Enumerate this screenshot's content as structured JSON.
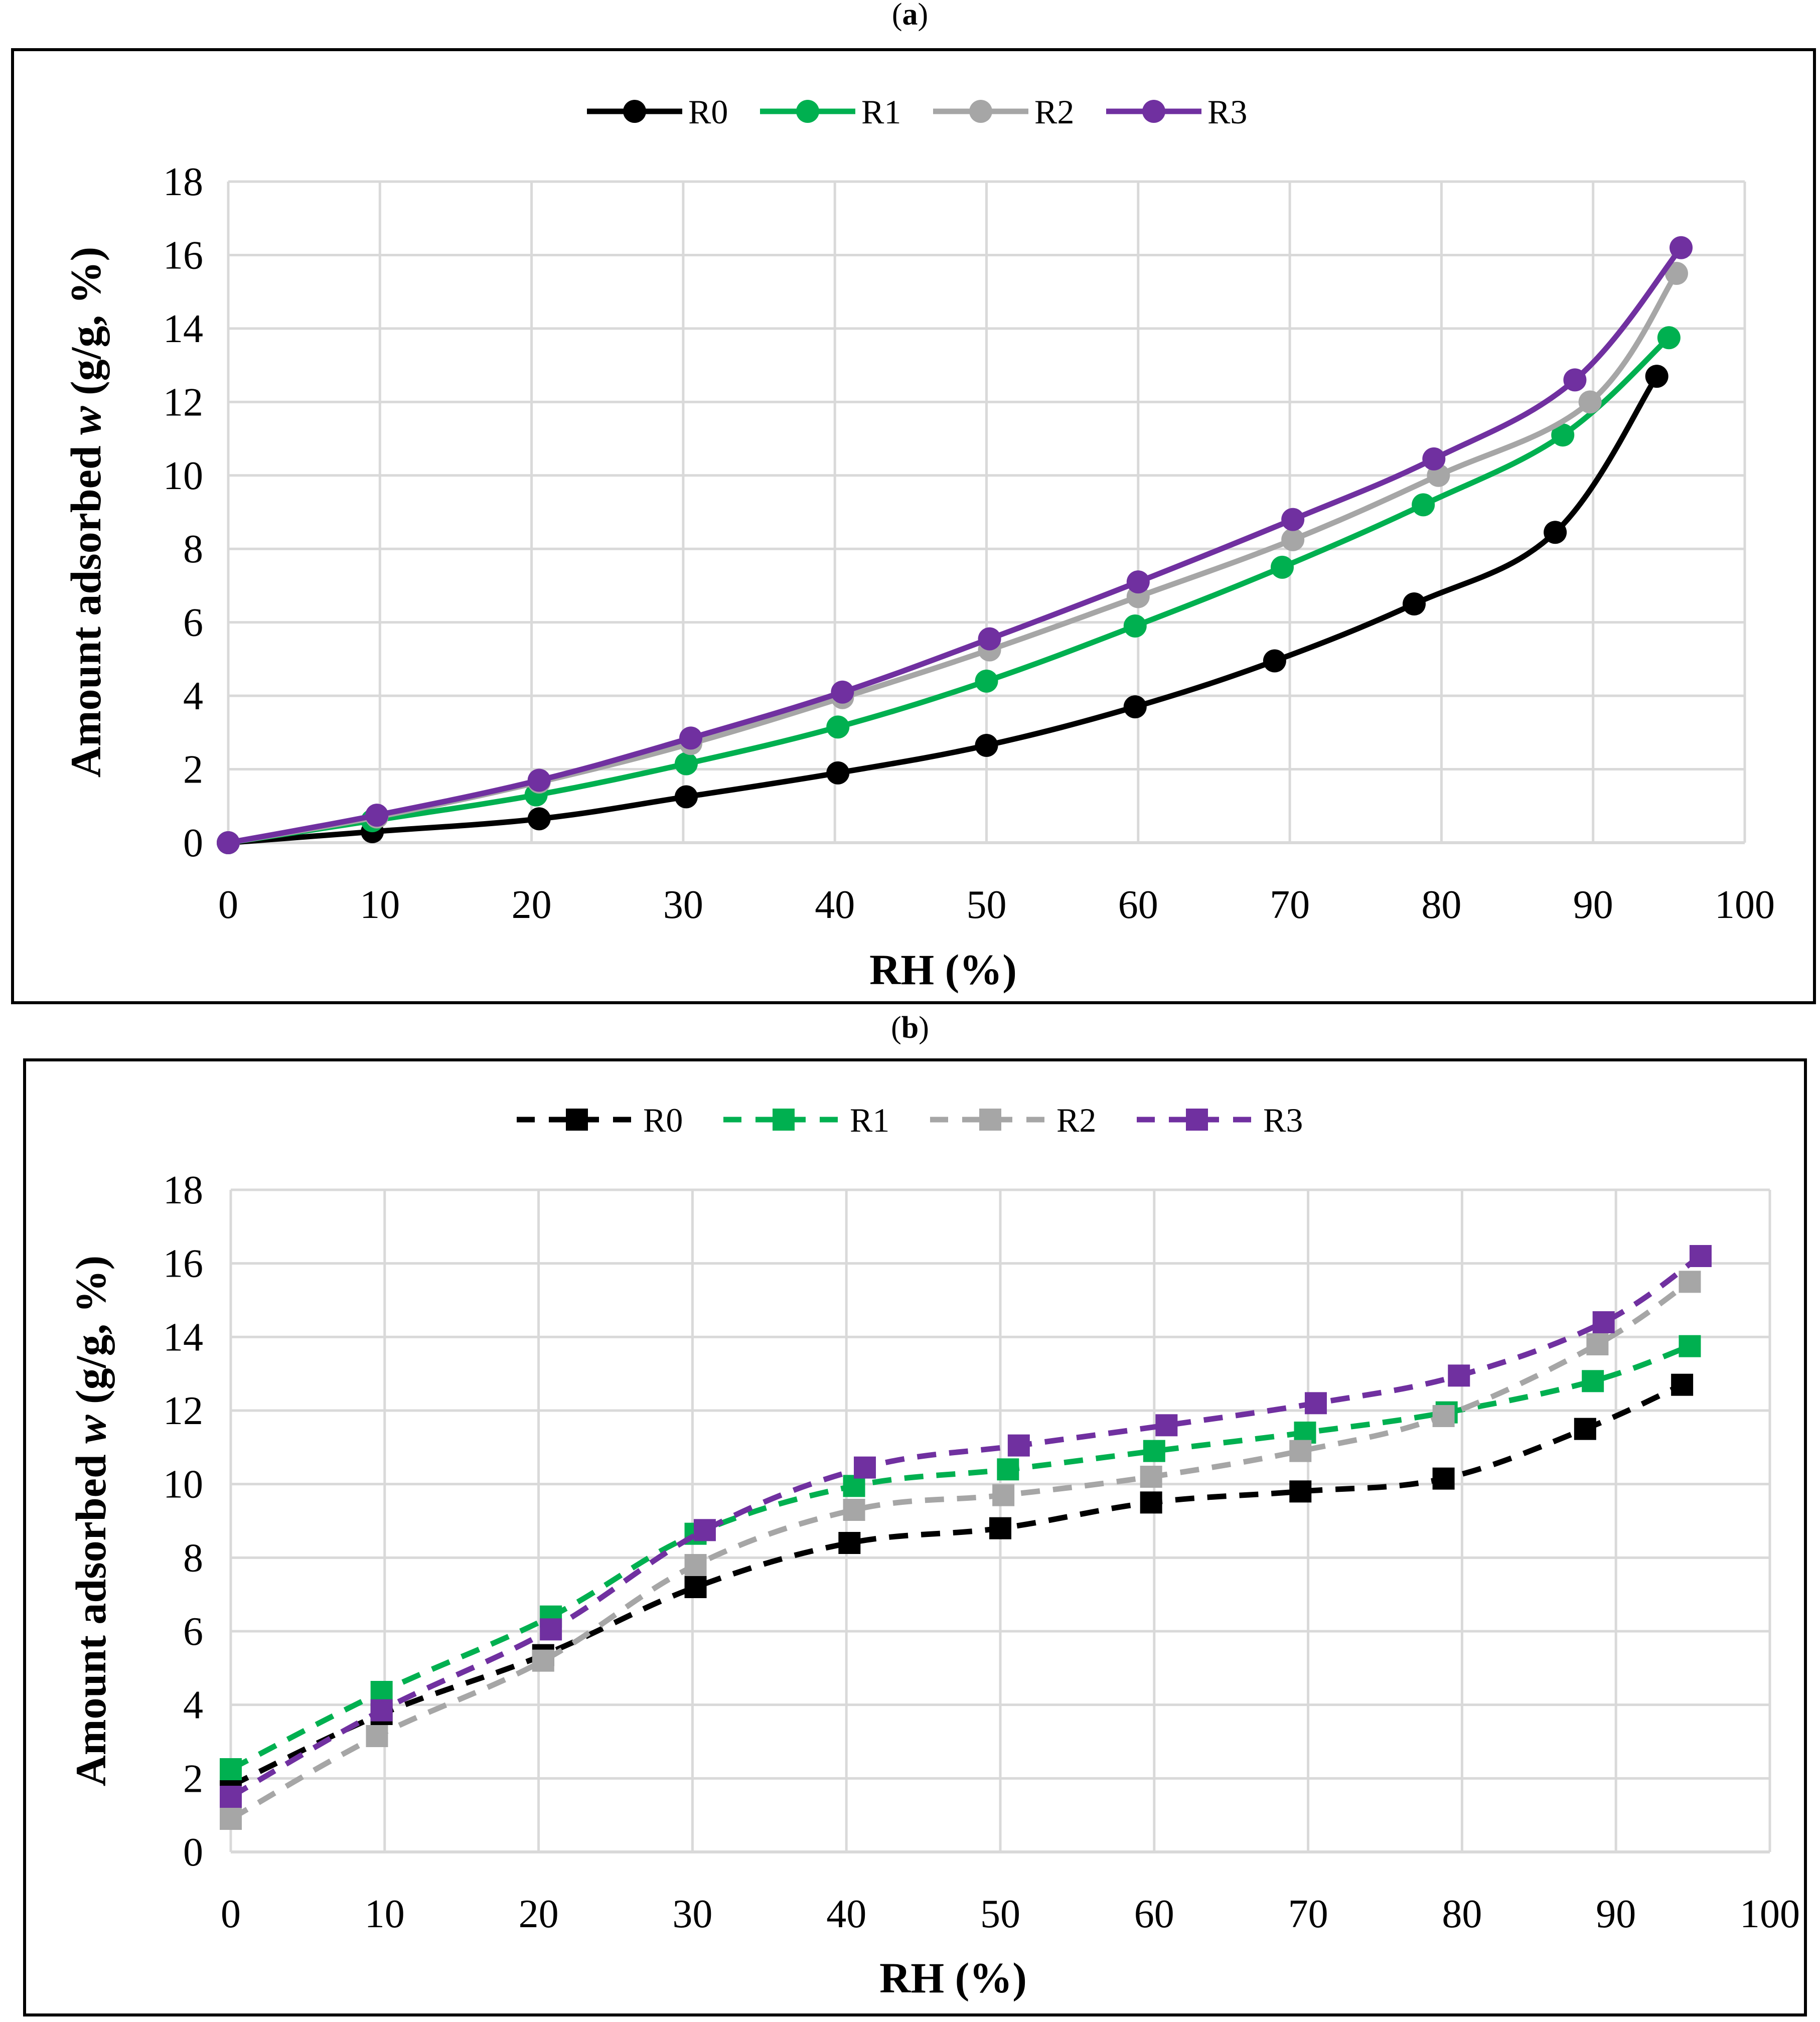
{
  "chart_data": [
    {
      "panel_label": "a",
      "type": "line",
      "title": "",
      "xlabel": "RH (%)",
      "ylabel_prefix": "Amount adsorbed ",
      "ylabel_italic": "w",
      "ylabel_suffix": " (g/g, %)",
      "xlim": [
        0,
        100
      ],
      "ylim": [
        0,
        18
      ],
      "x_ticks": [
        "0",
        "10",
        "20",
        "30",
        "40",
        "50",
        "60",
        "70",
        "80",
        "90",
        "100"
      ],
      "y_ticks": [
        "0",
        "2",
        "4",
        "6",
        "8",
        "10",
        "12",
        "14",
        "16",
        "18"
      ],
      "grid": true,
      "legend_position": "top-center",
      "marker": "circle",
      "line_style": "solid",
      "series": [
        {
          "name": "R0",
          "color": "#000000",
          "x": [
            0,
            9.5,
            20.5,
            30.2,
            40.2,
            50,
            59.8,
            69,
            78.2,
            87.5,
            94.2
          ],
          "y": [
            0,
            0.3,
            0.65,
            1.25,
            1.9,
            2.65,
            3.7,
            4.95,
            6.5,
            8.45,
            12.7
          ]
        },
        {
          "name": "R1",
          "color": "#00b050",
          "x": [
            0,
            9.5,
            20.3,
            30.2,
            40.2,
            50,
            59.8,
            69.5,
            78.8,
            88,
            95
          ],
          "y": [
            0,
            0.6,
            1.3,
            2.15,
            3.15,
            4.4,
            5.9,
            7.5,
            9.2,
            11.1,
            13.75
          ]
        },
        {
          "name": "R2",
          "color": "#a6a6a6",
          "x": [
            0,
            9.8,
            20.5,
            30.5,
            40.5,
            50.2,
            60,
            70.2,
            79.8,
            89.8,
            95.5
          ],
          "y": [
            0,
            0.7,
            1.65,
            2.7,
            3.95,
            5.25,
            6.7,
            8.25,
            10,
            12,
            15.5
          ]
        },
        {
          "name": "R3",
          "color": "#7030a0",
          "x": [
            0,
            9.8,
            20.5,
            30.5,
            40.5,
            50.2,
            60,
            70.2,
            79.5,
            88.8,
            95.8
          ],
          "y": [
            0,
            0.75,
            1.7,
            2.85,
            4.1,
            5.55,
            7.1,
            8.8,
            10.45,
            12.6,
            16.2
          ]
        }
      ]
    },
    {
      "panel_label": "b",
      "type": "line",
      "title": "",
      "xlabel": "RH (%)",
      "ylabel_prefix": "Amount adsorbed ",
      "ylabel_italic": "w",
      "ylabel_suffix": " (g/g, %)",
      "xlim": [
        0,
        100
      ],
      "ylim": [
        0,
        18
      ],
      "x_ticks": [
        "0",
        "10",
        "20",
        "30",
        "40",
        "50",
        "60",
        "70",
        "80",
        "90",
        "100"
      ],
      "y_ticks": [
        "0",
        "2",
        "4",
        "6",
        "8",
        "10",
        "12",
        "14",
        "16",
        "18"
      ],
      "grid": true,
      "legend_position": "top-center",
      "marker": "square",
      "line_style": "dashed",
      "series": [
        {
          "name": "R0",
          "color": "#000000",
          "x": [
            0,
            9.8,
            20.3,
            30.2,
            40.2,
            50,
            59.8,
            69.5,
            78.8,
            88,
            94.3
          ],
          "y": [
            1.8,
            3.75,
            5.35,
            7.2,
            8.4,
            8.8,
            9.5,
            9.8,
            10.15,
            11.5,
            12.7
          ]
        },
        {
          "name": "R1",
          "color": "#00b050",
          "x": [
            0,
            9.8,
            20.8,
            30.2,
            40.5,
            50.5,
            60,
            69.8,
            79,
            88.5,
            94.8
          ],
          "y": [
            2.25,
            4.35,
            6.4,
            8.65,
            9.95,
            10.4,
            10.9,
            11.4,
            11.95,
            12.8,
            13.75
          ]
        },
        {
          "name": "R2",
          "color": "#a6a6a6",
          "x": [
            0,
            9.5,
            20.3,
            30.2,
            40.5,
            50.2,
            59.8,
            69.5,
            78.8,
            88.8,
            94.8
          ],
          "y": [
            0.9,
            3.15,
            5.2,
            7.8,
            9.3,
            9.7,
            10.2,
            10.9,
            11.85,
            13.8,
            15.5
          ]
        },
        {
          "name": "R3",
          "color": "#7030a0",
          "x": [
            0,
            9.8,
            20.8,
            30.8,
            41.2,
            51.2,
            60.8,
            70.5,
            79.8,
            89.2,
            95.5
          ],
          "y": [
            1.5,
            3.85,
            6.05,
            8.75,
            10.45,
            11.05,
            11.6,
            12.2,
            12.95,
            14.4,
            16.2
          ]
        }
      ]
    }
  ]
}
